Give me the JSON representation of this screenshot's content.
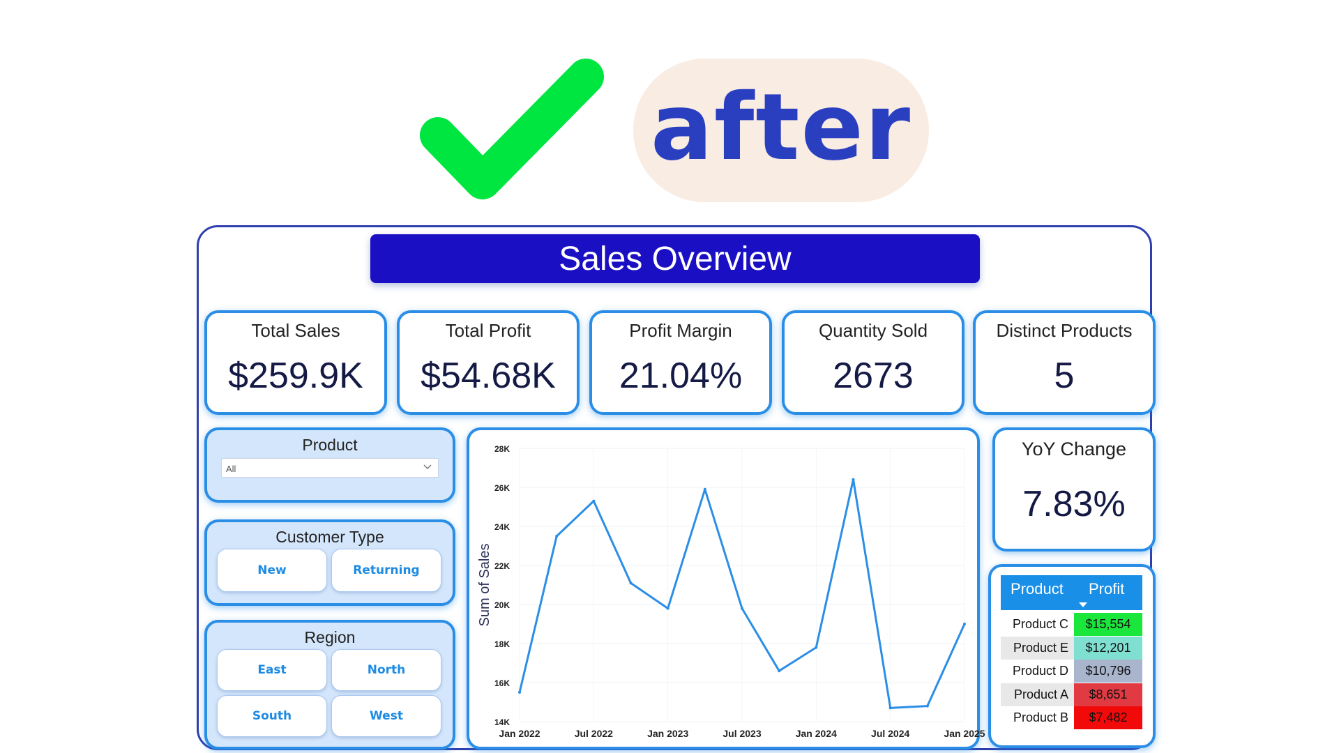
{
  "header": {
    "check_color": "#00e640",
    "after_label": "after"
  },
  "dashboard": {
    "title": "Sales Overview",
    "kpis": [
      {
        "label": "Total Sales",
        "value": "$259.9K"
      },
      {
        "label": "Total Profit",
        "value": "$54.68K"
      },
      {
        "label": "Profit Margin",
        "value": "21.04%"
      },
      {
        "label": "Quantity Sold",
        "value": "2673"
      },
      {
        "label": "Distinct Products",
        "value": "5"
      }
    ],
    "yoy": {
      "label": "YoY Change",
      "value": "7.83%"
    },
    "product_slicer": {
      "title": "Product",
      "selected": "All"
    },
    "customer_slicer": {
      "title": "Customer Type",
      "options": [
        "New",
        "Returning"
      ]
    },
    "region_slicer": {
      "title": "Region",
      "options": [
        "East",
        "North",
        "South",
        "West"
      ]
    },
    "table": {
      "col_product": "Product",
      "col_profit": "Profit",
      "rows": [
        {
          "product": "Product C",
          "profit": "$15,554",
          "color": "#1ae63c"
        },
        {
          "product": "Product E",
          "profit": "$12,201",
          "color": "#7fe0d2"
        },
        {
          "product": "Product D",
          "profit": "$10,796",
          "color": "#a9b5cc"
        },
        {
          "product": "Product A",
          "profit": "$8,651",
          "color": "#e23a42"
        },
        {
          "product": "Product B",
          "profit": "$7,482",
          "color": "#f20a0a"
        }
      ]
    }
  },
  "chart_data": {
    "type": "line",
    "title": "",
    "ylabel": "Sum of Sales",
    "xlabel": "",
    "ylim": [
      14000,
      28000
    ],
    "x_tick_labels": [
      "Jan 2022",
      "Jul 2022",
      "Jan 2023",
      "Jul 2023",
      "Jan 2024",
      "Jul 2024",
      "Jan 2025"
    ],
    "y_tick_labels": [
      "14K",
      "16K",
      "18K",
      "20K",
      "22K",
      "24K",
      "26K",
      "28K"
    ],
    "line_color": "#2b8ee6",
    "series": [
      {
        "name": "",
        "points": [
          {
            "x": "Jan 2022",
            "y": 15500
          },
          {
            "x": "Apr 2022",
            "y": 23500
          },
          {
            "x": "Jul 2022",
            "y": 25300
          },
          {
            "x": "Oct 2022",
            "y": 21100
          },
          {
            "x": "Jan 2023",
            "y": 19800
          },
          {
            "x": "Apr 2023",
            "y": 25900
          },
          {
            "x": "Jul 2023",
            "y": 19800
          },
          {
            "x": "Oct 2023",
            "y": 16600
          },
          {
            "x": "Jan 2024",
            "y": 17800
          },
          {
            "x": "Apr 2024",
            "y": 26400
          },
          {
            "x": "Jul 2024",
            "y": 14700
          },
          {
            "x": "Oct 2024",
            "y": 14800
          },
          {
            "x": "Jan 2025",
            "y": 19000
          }
        ]
      }
    ]
  }
}
